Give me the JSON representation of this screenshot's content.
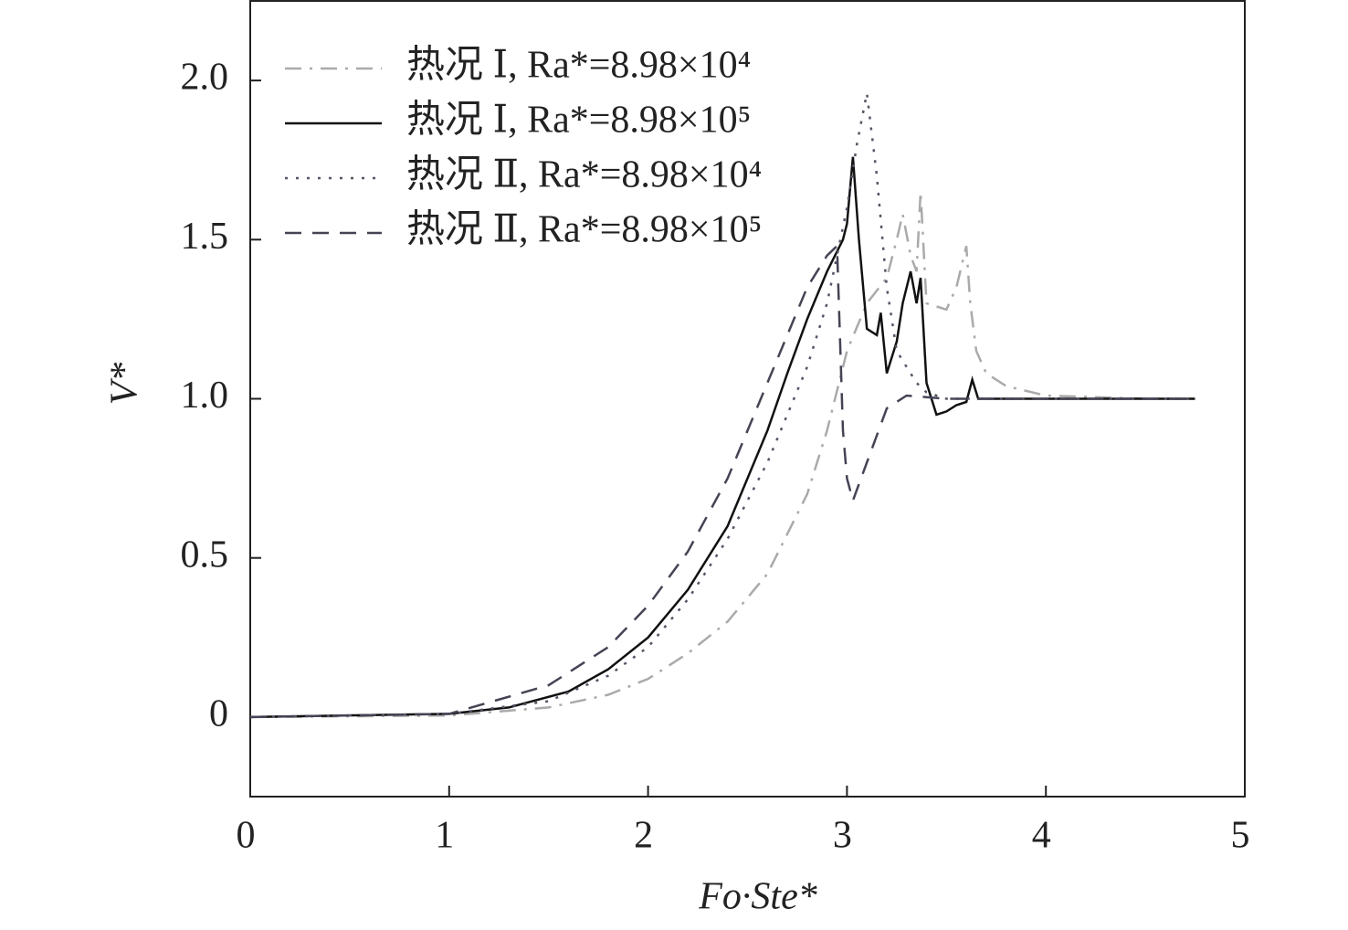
{
  "chart_data": {
    "type": "line",
    "x_label": "Fo·Ste*",
    "y_label": "V*",
    "xlim": [
      0,
      5
    ],
    "xticks": [
      0,
      1,
      2,
      3,
      4,
      5
    ],
    "ylim": [
      -0.25,
      2.25
    ],
    "yticks": [
      0,
      0.5,
      {
        "value": 1,
        "label": "1.0"
      },
      1.5,
      {
        "value": 2,
        "label": "2.0"
      }
    ],
    "legend": "upper-left",
    "series": [
      {
        "name": "热况 Ⅰ, Ra*=8.98×10⁴",
        "color": "#aaaaaa",
        "linestyle": "dashdot",
        "x": [
          0,
          1,
          1.5,
          1.8,
          2,
          2.2,
          2.4,
          2.6,
          2.8,
          2.9,
          3,
          3.1,
          3.2,
          3.25,
          3.28,
          3.32,
          3.35,
          3.37,
          3.4,
          3.5,
          3.55,
          3.6,
          3.62,
          3.65,
          3.7,
          3.8,
          4,
          4.5,
          4.75
        ],
        "values": [
          0,
          0.005,
          0.03,
          0.07,
          0.12,
          0.2,
          0.3,
          0.45,
          0.7,
          0.9,
          1.15,
          1.3,
          1.38,
          1.5,
          1.58,
          1.45,
          1.4,
          1.65,
          1.3,
          1.28,
          1.35,
          1.48,
          1.3,
          1.15,
          1.08,
          1.04,
          1.01,
          1,
          1
        ]
      },
      {
        "name": "热况 Ⅰ, Ra*=8.98×10⁵",
        "color": "#111111",
        "linestyle": "solid",
        "x": [
          0,
          1,
          1.3,
          1.6,
          1.8,
          2,
          2.2,
          2.4,
          2.5,
          2.6,
          2.7,
          2.8,
          2.9,
          2.98,
          3,
          3.03,
          3.06,
          3.1,
          3.15,
          3.17,
          3.2,
          3.25,
          3.28,
          3.32,
          3.35,
          3.37,
          3.4,
          3.45,
          3.5,
          3.55,
          3.6,
          3.63,
          3.66,
          3.8,
          4.75
        ],
        "values": [
          0,
          0.01,
          0.03,
          0.08,
          0.15,
          0.25,
          0.4,
          0.6,
          0.75,
          0.9,
          1.08,
          1.25,
          1.4,
          1.5,
          1.55,
          1.76,
          1.5,
          1.22,
          1.2,
          1.27,
          1.08,
          1.18,
          1.3,
          1.4,
          1.3,
          1.38,
          1.05,
          0.95,
          0.96,
          0.98,
          0.99,
          1.06,
          1,
          1,
          1
        ]
      },
      {
        "name": "热况 Ⅱ, Ra*=8.98×10⁴",
        "color": "#555566",
        "linestyle": "dotted",
        "x": [
          0,
          1,
          1.5,
          1.8,
          2,
          2.2,
          2.4,
          2.6,
          2.8,
          2.9,
          3,
          3.05,
          3.1,
          3.15,
          3.2,
          3.25,
          3.3,
          3.35,
          3.4,
          3.5,
          4.75
        ],
        "values": [
          0,
          0.01,
          0.05,
          0.13,
          0.22,
          0.37,
          0.56,
          0.8,
          1.1,
          1.3,
          1.6,
          1.8,
          1.96,
          1.7,
          1.35,
          1.15,
          1.1,
          1.05,
          1.02,
          1,
          1
        ]
      },
      {
        "name": "热况 Ⅱ, Ra*=8.98×10⁵",
        "color": "#444455",
        "linestyle": "dashed",
        "x": [
          0,
          1,
          1.5,
          1.8,
          2,
          2.2,
          2.4,
          2.6,
          2.8,
          2.9,
          2.95,
          2.98,
          3,
          3.03,
          3.1,
          3.2,
          3.3,
          3.5,
          4.75
        ],
        "values": [
          0,
          0.01,
          0.1,
          0.22,
          0.35,
          0.52,
          0.75,
          1.05,
          1.35,
          1.45,
          1.48,
          0.9,
          0.75,
          0.68,
          0.8,
          0.97,
          1.01,
          1,
          1
        ]
      }
    ]
  }
}
